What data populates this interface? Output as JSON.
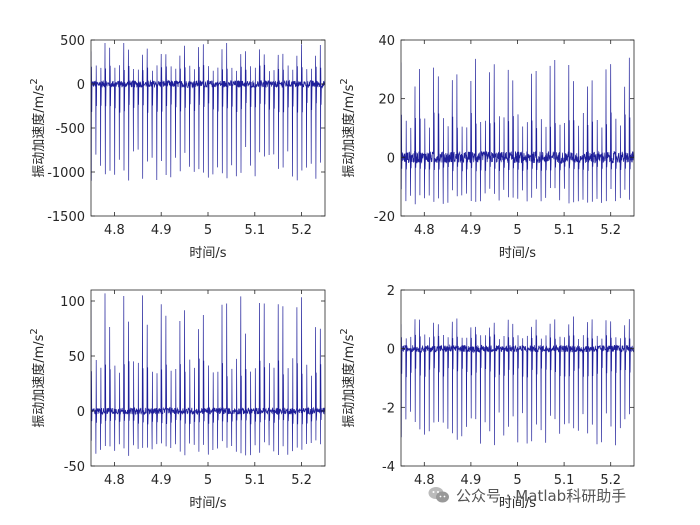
{
  "watermark": {
    "text": "公众号 · Matlab科研助手",
    "icon": "wechat-icon"
  },
  "colors": {
    "line": "#1f1f9a",
    "axis": "#262626",
    "background": "#ffffff"
  },
  "chart_data": [
    {
      "type": "line",
      "position": "top-left",
      "xlabel": "时间/s",
      "ylabel": "振动加速度/m/s",
      "ylabel_superscript": "2",
      "xlim": [
        4.75,
        5.25
      ],
      "ylim": [
        -1500,
        500
      ],
      "xticks": [
        4.8,
        4.9,
        5,
        5.1,
        5.2
      ],
      "xtick_labels": [
        "4.8",
        "4.9",
        "5",
        "5.1",
        "5.2"
      ],
      "yticks": [
        -1500,
        -1000,
        -500,
        0,
        500
      ],
      "ytick_labels": [
        "-1500",
        "-1000",
        "-500",
        "0",
        "500"
      ],
      "grid": false,
      "series": [
        {
          "impulse_period_s": 0.01,
          "peak_max": 490,
          "peak_min": -1100,
          "noise_amplitude": 40,
          "description_values": "periodic impulses between about -1100 and 490"
        }
      ]
    },
    {
      "type": "line",
      "position": "top-right",
      "xlabel": "时间/s",
      "ylabel": "振动加速度/m/s",
      "ylabel_superscript": "2",
      "xlim": [
        4.75,
        5.25
      ],
      "ylim": [
        -20,
        40
      ],
      "xticks": [
        4.8,
        4.9,
        5,
        5.1,
        5.2
      ],
      "xtick_labels": [
        "4.8",
        "4.9",
        "5",
        "5.1",
        "5.2"
      ],
      "yticks": [
        -20,
        0,
        20,
        40
      ],
      "ytick_labels": [
        "-20",
        "0",
        "20",
        "40"
      ],
      "grid": false,
      "series": [
        {
          "impulse_period_s": 0.01,
          "peak_max": 34,
          "peak_min": -16,
          "noise_amplitude": 2,
          "description_values": "periodic impulses between about -16 and 34"
        }
      ]
    },
    {
      "type": "line",
      "position": "bottom-left",
      "xlabel": "时间/s",
      "ylabel": "振动加速度/m/s",
      "ylabel_superscript": "2",
      "xlim": [
        4.75,
        5.25
      ],
      "ylim": [
        -50,
        110
      ],
      "xticks": [
        4.8,
        4.9,
        5,
        5.1,
        5.2
      ],
      "xtick_labels": [
        "4.8",
        "4.9",
        "5",
        "5.1",
        "5.2"
      ],
      "yticks": [
        -50,
        0,
        50,
        100
      ],
      "ytick_labels": [
        "-50",
        "0",
        "50",
        "100"
      ],
      "grid": false,
      "series": [
        {
          "impulse_period_s": 0.01,
          "peak_max": 108,
          "peak_min": -41,
          "noise_amplitude": 3,
          "description_values": "periodic impulses between about -41 and 108"
        }
      ]
    },
    {
      "type": "line",
      "position": "bottom-right",
      "xlabel": "时间/s",
      "ylabel": "振动加速度/m/s",
      "ylabel_superscript": "2",
      "xlim": [
        4.75,
        5.25
      ],
      "ylim": [
        -4,
        2
      ],
      "xticks": [
        4.8,
        4.9,
        5,
        5.1,
        5.2
      ],
      "xtick_labels": [
        "4.8",
        "4.9",
        "5",
        "5.1",
        "5.2"
      ],
      "yticks": [
        -4,
        -2,
        0,
        2
      ],
      "ytick_labels": [
        "-4",
        "-2",
        "0",
        "2"
      ],
      "grid": false,
      "series": [
        {
          "impulse_period_s": 0.01,
          "peak_max": 1.1,
          "peak_min": -3.3,
          "noise_amplitude": 0.12,
          "description_values": "periodic impulses between about -3.3 and 1.1"
        }
      ]
    }
  ]
}
